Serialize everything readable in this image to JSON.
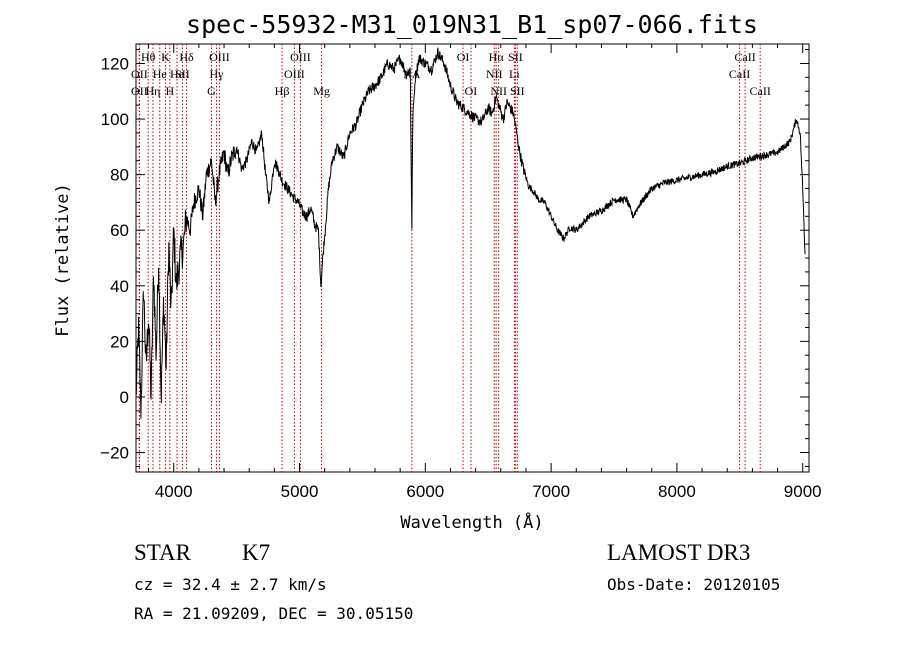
{
  "chart_data": {
    "type": "line",
    "title": "spec-55932-M31_019N31_B1_sp07-066.fits",
    "xlabel": "Wavelength (Å)",
    "ylabel": "Flux (relative)",
    "xlim": [
      3700,
      9050
    ],
    "ylim": [
      -27,
      127
    ],
    "xticks": [
      {
        "v": 4000,
        "label": "4000"
      },
      {
        "v": 5000,
        "label": "5000"
      },
      {
        "v": 6000,
        "label": "6000"
      },
      {
        "v": 7000,
        "label": "7000"
      },
      {
        "v": 8000,
        "label": "8000"
      },
      {
        "v": 9000,
        "label": "9000"
      }
    ],
    "yticks": [
      {
        "v": -20,
        "label": "−20"
      },
      {
        "v": 0,
        "label": "0"
      },
      {
        "v": 20,
        "label": "20"
      },
      {
        "v": 40,
        "label": "40"
      },
      {
        "v": 60,
        "label": "60"
      },
      {
        "v": 80,
        "label": "80"
      },
      {
        "v": 100,
        "label": "100"
      },
      {
        "v": 120,
        "label": "120"
      }
    ],
    "series": [
      {
        "x": [
          3700,
          3720,
          3740,
          3760,
          3780,
          3800,
          3820,
          3840,
          3860,
          3880,
          3900,
          3920,
          3940,
          3960,
          3980,
          4000,
          4020,
          4050,
          4080,
          4100,
          4130,
          4160,
          4200,
          4230,
          4260,
          4300,
          4330,
          4360,
          4400,
          4430,
          4460,
          4500,
          4540,
          4580,
          4620,
          4660,
          4700,
          4730,
          4760,
          4800,
          4830,
          4860,
          4890,
          4920,
          4950,
          4990,
          5030,
          5060,
          5090,
          5120,
          5150,
          5170,
          5185,
          5200,
          5230,
          5260,
          5300,
          5350,
          5400,
          5450,
          5500,
          5550,
          5600,
          5650,
          5700,
          5750,
          5800,
          5850,
          5880,
          5893,
          5900,
          5920,
          5950,
          6000,
          6050,
          6100,
          6150,
          6200,
          6250,
          6300,
          6350,
          6400,
          6450,
          6500,
          6530,
          6563,
          6590,
          6620,
          6650,
          6700,
          6730,
          6750,
          6780,
          6820,
          6860,
          6900,
          6950,
          7000,
          7050,
          7100,
          7150,
          7200,
          7300,
          7400,
          7500,
          7600,
          7650,
          7700,
          7800,
          7900,
          8000,
          8100,
          8200,
          8300,
          8400,
          8500,
          8600,
          8700,
          8800,
          8850,
          8900,
          8950,
          8980,
          9000,
          9020
        ],
        "y": [
          0,
          25,
          -5,
          40,
          10,
          30,
          0,
          45,
          15,
          50,
          0,
          35,
          10,
          55,
          30,
          60,
          40,
          50,
          55,
          65,
          60,
          70,
          75,
          65,
          80,
          85,
          70,
          80,
          88,
          80,
          86,
          90,
          82,
          85,
          92,
          88,
          95,
          80,
          70,
          85,
          82,
          78,
          76,
          74,
          72,
          70,
          66,
          65,
          68,
          62,
          60,
          40,
          50,
          58,
          75,
          85,
          90,
          86,
          95,
          98,
          105,
          110,
          112,
          115,
          120,
          118,
          122,
          116,
          118,
          60,
          100,
          115,
          122,
          120,
          118,
          124,
          120,
          112,
          106,
          104,
          102,
          100,
          99,
          104,
          102,
          108,
          104,
          100,
          106,
          102,
          94,
          88,
          82,
          76,
          74,
          71,
          70,
          65,
          60,
          57,
          61,
          60,
          65,
          67,
          71,
          71,
          65,
          69,
          75,
          77,
          78,
          79,
          80,
          81,
          83,
          84,
          86,
          87,
          88,
          90,
          92,
          100,
          95,
          75,
          50
        ]
      }
    ],
    "lines": [
      {
        "x": 3797,
        "t": "Hθ",
        "row": 0
      },
      {
        "x": 3727,
        "t": "OII",
        "row": 1
      },
      {
        "x": 3727,
        "t": "OII",
        "row": 2
      },
      {
        "x": 3835,
        "t": "Hη",
        "row": 2
      },
      {
        "x": 3889,
        "t": "He",
        "row": 1
      },
      {
        "x": 3934,
        "t": "K",
        "row": 0
      },
      {
        "x": 3969,
        "t": "H",
        "row": 2
      },
      {
        "x": 4026,
        "t": "He",
        "row": 1
      },
      {
        "x": 4069,
        "t": "SII",
        "row": 1
      },
      {
        "x": 4102,
        "t": "Hδ",
        "row": 0
      },
      {
        "x": 4300,
        "t": "G",
        "row": 2
      },
      {
        "x": 4340,
        "t": "Hγ",
        "row": 1
      },
      {
        "x": 4363,
        "t": "OIII",
        "row": 0
      },
      {
        "x": 4861,
        "t": "Hβ",
        "row": 2
      },
      {
        "x": 4959,
        "t": "OIII",
        "row": 1
      },
      {
        "x": 5007,
        "t": "OIII",
        "row": 0
      },
      {
        "x": 5175,
        "t": "Mg",
        "row": 2
      },
      {
        "x": 5893,
        "t": "NA",
        "row": 1
      },
      {
        "x": 6300,
        "t": "OI",
        "row": 0
      },
      {
        "x": 6363,
        "t": "OI",
        "row": 2
      },
      {
        "x": 6548,
        "t": "NII",
        "row": 1
      },
      {
        "x": 6563,
        "t": "Hα",
        "row": 0
      },
      {
        "x": 6583,
        "t": "NII",
        "row": 2
      },
      {
        "x": 6708,
        "t": "Li",
        "row": 1
      },
      {
        "x": 6716,
        "t": "SII",
        "row": 0
      },
      {
        "x": 6731,
        "t": "SII",
        "row": 2
      },
      {
        "x": 8498,
        "t": "CaII",
        "row": 1
      },
      {
        "x": 8542,
        "t": "CaII",
        "row": 0
      },
      {
        "x": 8662,
        "t": "CaII",
        "row": 2
      }
    ]
  },
  "info": {
    "class": "STAR",
    "subclass": "K7",
    "cz": "cz = 32.4 ± 2.7 km/s",
    "coords": "RA =  21.09209, DEC =  30.05150",
    "survey": "LAMOST DR3",
    "obsdate": "Obs-Date: 20120105"
  }
}
